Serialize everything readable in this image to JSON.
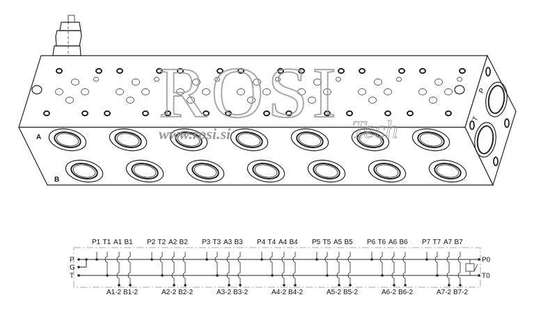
{
  "drawing": {
    "watermark": {
      "brand": "ROSI",
      "brand_suffix": "Tech",
      "url": "www.rosi.si"
    },
    "front_face_labels": {
      "row_a": "A",
      "row_b": "B"
    },
    "end_face_labels": {
      "pressure": "P",
      "tank": "T"
    },
    "stations": 7,
    "line_color": "#222222",
    "watermark_color": "#9a9a9a"
  },
  "schematic": {
    "left_ports": [
      "P",
      "G",
      "T"
    ],
    "right_ports": [
      "P0",
      "T0"
    ],
    "top_labels": [
      [
        "P1",
        "T1",
        "A1",
        "B1"
      ],
      [
        "P2",
        "T2",
        "A2",
        "B2"
      ],
      [
        "P3",
        "T3",
        "A3",
        "B3"
      ],
      [
        "P4",
        "T4",
        "A4",
        "B4"
      ],
      [
        "P5",
        "T5",
        "A5",
        "B5"
      ],
      [
        "P6",
        "T6",
        "A6",
        "B6"
      ],
      [
        "P7",
        "T7",
        "A7",
        "B7"
      ]
    ],
    "bottom_labels": [
      [
        "A1-2",
        "B1-2"
      ],
      [
        "A2-2",
        "B2-2"
      ],
      [
        "A3-2",
        "B3-2"
      ],
      [
        "A4-2",
        "B4-2"
      ],
      [
        "A5-2",
        "B5-2"
      ],
      [
        "A6-2",
        "B6-2"
      ],
      [
        "A7-2",
        "B7-2"
      ]
    ]
  }
}
